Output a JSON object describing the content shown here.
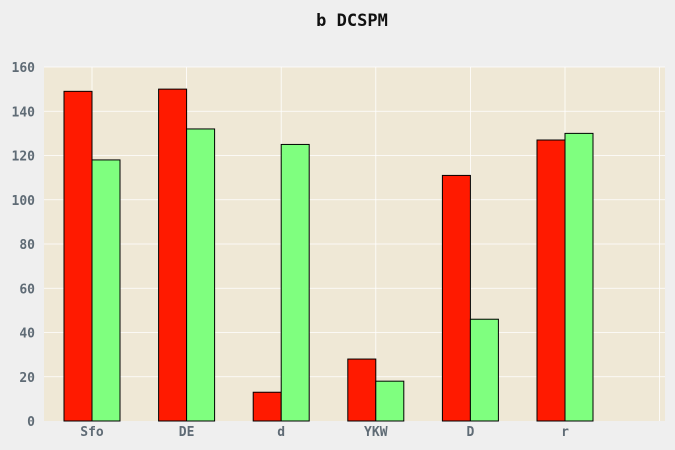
{
  "chart_data": {
    "type": "bar",
    "title": "b DCSPM",
    "xlabel": "",
    "ylabel": "",
    "categories": [
      "Sfo",
      "DE",
      "d",
      "YKW",
      "D",
      "r"
    ],
    "series": [
      {
        "values": [
          149,
          150,
          13,
          28,
          111,
          127
        ],
        "color": "#ff1a00"
      },
      {
        "values": [
          118,
          132,
          125,
          18,
          46,
          130
        ],
        "color": "#7fff7f"
      }
    ],
    "ylim": [
      0,
      160
    ],
    "yticks": [
      0,
      20,
      40,
      60,
      80,
      100,
      120,
      140,
      160
    ],
    "grid": true,
    "colors": {
      "plot_background": "#efe8d6",
      "grid": "#ffffff",
      "tick_text": "#5f6b75"
    }
  }
}
